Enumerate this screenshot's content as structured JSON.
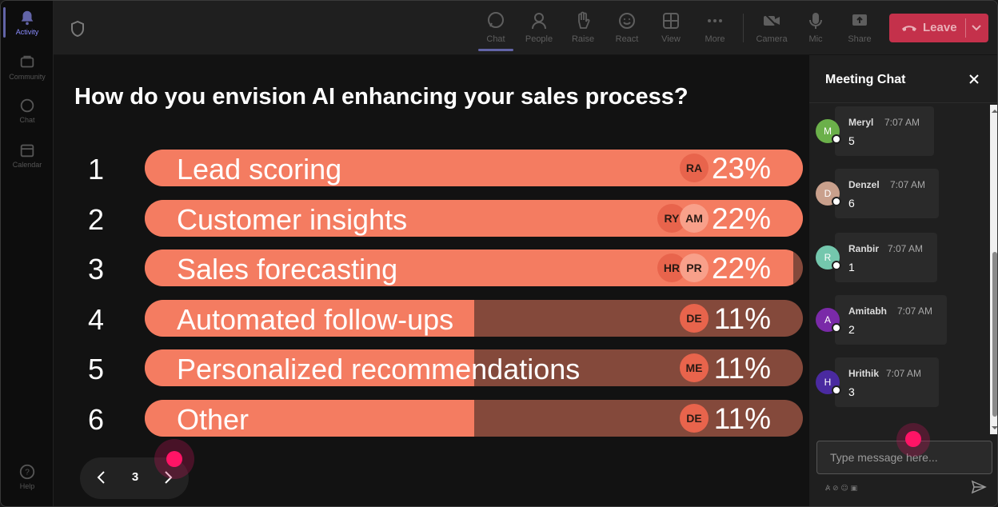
{
  "rail": {
    "items": [
      {
        "label": "Activity",
        "icon": "bell-icon"
      },
      {
        "label": "Community",
        "icon": "community-icon"
      },
      {
        "label": "Chat",
        "icon": "chat-icon"
      },
      {
        "label": "Calendar",
        "icon": "calendar-icon"
      },
      {
        "label": "Help",
        "icon": "help-icon"
      }
    ]
  },
  "toolbar": {
    "chat": "Chat",
    "people": "People",
    "raise": "Raise",
    "react": "React",
    "view": "View",
    "more": "More",
    "camera": "Camera",
    "mic": "Mic",
    "share": "Share",
    "leave": "Leave"
  },
  "poll": {
    "question": "How do you envision AI enhancing your sales process?",
    "options": [
      {
        "num": "1",
        "label": "Lead scoring",
        "pct": "23%",
        "fraction": 1.0,
        "avatars": [
          "RA"
        ]
      },
      {
        "num": "2",
        "label": "Customer insights",
        "pct": "22%",
        "fraction": 1.0,
        "avatars": [
          "RY",
          "AM"
        ]
      },
      {
        "num": "3",
        "label": "Sales forecasting",
        "pct": "22%",
        "fraction": 0.985,
        "avatars": [
          "HR",
          "PR"
        ]
      },
      {
        "num": "4",
        "label": "Automated follow-ups",
        "pct": "11%",
        "fraction": 0.5,
        "avatars": [
          "DE"
        ]
      },
      {
        "num": "5",
        "label": "Personalized recommendations",
        "pct": "11%",
        "fraction": 0.5,
        "avatars": [
          "ME"
        ]
      },
      {
        "num": "6",
        "label": "Other",
        "pct": "11%",
        "fraction": 0.5,
        "avatars": [
          "DE"
        ]
      }
    ],
    "page": "3"
  },
  "chat": {
    "title": "Meeting Chat",
    "messages": [
      {
        "initial": "M",
        "name": "Meryl",
        "time": "7:07 AM",
        "text": "5",
        "color": "#6bb04a"
      },
      {
        "initial": "D",
        "name": "Denzel",
        "time": "7:07 AM",
        "text": "6",
        "color": "#c9a08c"
      },
      {
        "initial": "R",
        "name": "Ranbir",
        "time": "7:07 AM",
        "text": "1",
        "color": "#74c7ad"
      },
      {
        "initial": "A",
        "name": "Amitabh",
        "time": "7:07 AM",
        "text": "2",
        "color": "#7a2aa8"
      },
      {
        "initial": "H",
        "name": "Hrithik",
        "time": "7:07 AM",
        "text": "3",
        "color": "#4a2aa0"
      }
    ],
    "placeholder": "Type message here..."
  },
  "colors": {
    "accent": "#6264a7",
    "bar_fill": "#f47c61",
    "bar_track": "#84493b",
    "leave": "#c4314b",
    "cursor": "#ff1466"
  }
}
